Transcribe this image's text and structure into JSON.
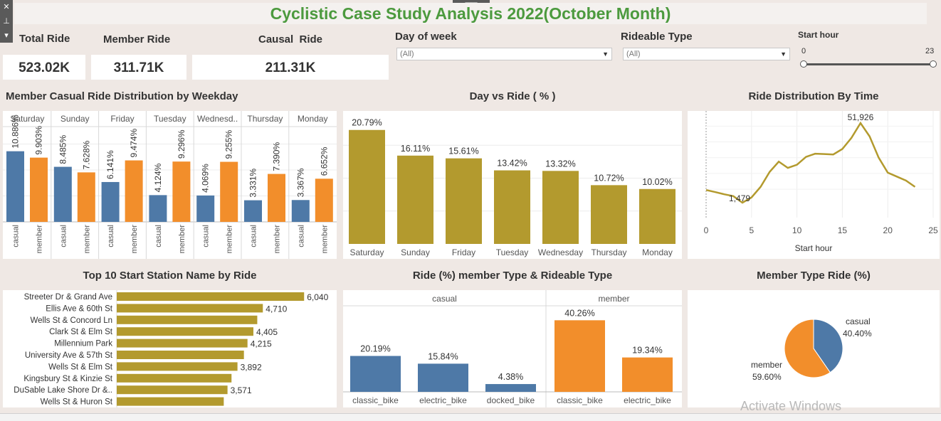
{
  "title": "Cyclistic Case Study Analysis 2022(October Month)",
  "kpis": [
    {
      "label": "Total Ride",
      "value": "523.02K"
    },
    {
      "label": "Member Ride",
      "value": "311.71K"
    },
    {
      "label": "Causal  Ride",
      "value": "211.31K"
    }
  ],
  "filters": {
    "day_of_week": {
      "label": "Day of week",
      "value": "(All)"
    },
    "rideable_type": {
      "label": "Rideable Type",
      "value": "(All)"
    },
    "start_hour": {
      "label": "Start hour",
      "min": "0",
      "max": "23"
    }
  },
  "colors": {
    "casual": "#4e79a7",
    "member": "#f28e2b",
    "olive": "#b39a2e",
    "title_green": "#4c9a3e"
  },
  "watermark": "Activate Windows",
  "chart_data": [
    {
      "type": "bar",
      "title": "Member Casual Ride Distribution by Weekday",
      "categories": [
        "Saturday",
        "Sunday",
        "Friday",
        "Tuesday",
        "Wednesd..",
        "Thursday",
        "Monday"
      ],
      "series": [
        {
          "name": "casual",
          "values": [
            10.886,
            8.485,
            6.141,
            4.124,
            4.069,
            3.331,
            3.367
          ],
          "labels": [
            "10.886%",
            "8.485%",
            "6.141%",
            "4.124%",
            "4.069%",
            "3.331%",
            "3.367%"
          ]
        },
        {
          "name": "member",
          "values": [
            9.903,
            7.628,
            9.474,
            9.296,
            9.255,
            7.39,
            6.652
          ],
          "labels": [
            "9.903%",
            "7.628%",
            "9.474%",
            "9.296%",
            "9.255%",
            "7.390%",
            "6.652%"
          ]
        }
      ],
      "ylim": [
        0,
        16
      ]
    },
    {
      "type": "bar",
      "title": "Day vs Ride ( % )",
      "categories": [
        "Saturday",
        "Sunday",
        "Friday",
        "Tuesday",
        "Wednesday",
        "Thursday",
        "Monday"
      ],
      "values": [
        20.79,
        16.11,
        15.61,
        13.42,
        13.32,
        10.72,
        10.02
      ],
      "labels": [
        "20.79%",
        "16.11%",
        "15.61%",
        "13.42%",
        "13.32%",
        "10.72%",
        "10.02%"
      ],
      "ylim": [
        0,
        24
      ]
    },
    {
      "type": "line",
      "title": "Ride Distribution By Time",
      "xlabel": "Start hour",
      "x": [
        0,
        1,
        2,
        3,
        4,
        5,
        6,
        7,
        8,
        9,
        10,
        11,
        12,
        13,
        14,
        15,
        16,
        17,
        18,
        19,
        20,
        21,
        22,
        23
      ],
      "y": [
        9500,
        8200,
        6800,
        5600,
        1479,
        4800,
        11500,
        21000,
        27500,
        23500,
        25500,
        30500,
        32500,
        32300,
        32000,
        35500,
        42500,
        51926,
        43500,
        30000,
        20500,
        18000,
        15500,
        11500
      ],
      "annotations": [
        "51,926",
        "1,479"
      ],
      "xticks": [
        "0",
        "5",
        "10",
        "15",
        "20",
        "25"
      ],
      "xlim": [
        0,
        25
      ],
      "ylim": [
        -8000,
        56000
      ]
    },
    {
      "type": "bar",
      "orientation": "horizontal",
      "title": "Top 10 Start Station Name by Ride",
      "categories": [
        "Streeter Dr & Grand Ave",
        "Ellis Ave & 60th St",
        "Wells St & Concord Ln",
        "Clark St & Elm St",
        "Millennium Park",
        "University Ave & 57th St",
        "Wells St & Elm St",
        "Kingsbury St & Kinzie St",
        "DuSable Lake Shore Dr &..",
        "Wells St & Huron St"
      ],
      "values": [
        6040,
        4710,
        4530,
        4405,
        4215,
        4100,
        3892,
        3700,
        3571,
        3450
      ],
      "labels": [
        "6,040",
        "4,710",
        "",
        "4,405",
        "4,215",
        "",
        "3,892",
        "",
        "3,571",
        ""
      ],
      "xlim": [
        0,
        6700
      ]
    },
    {
      "type": "bar",
      "title": "Ride (%) member Type & Rideable Type",
      "groups": [
        {
          "name": "casual",
          "categories": [
            "classic_bike",
            "electric_bike",
            "docked_bike"
          ],
          "values": [
            20.19,
            15.84,
            4.38
          ],
          "labels": [
            "20.19%",
            "15.84%",
            "4.38%"
          ]
        },
        {
          "name": "member",
          "categories": [
            "classic_bike",
            "electric_bike"
          ],
          "values": [
            40.26,
            19.34
          ],
          "labels": [
            "40.26%",
            "19.34%"
          ]
        }
      ],
      "ylim": [
        0,
        46
      ]
    },
    {
      "type": "pie",
      "title": "Member Type Ride (%)",
      "slices": [
        {
          "name": "casual",
          "value": 40.4,
          "label": "40.40%"
        },
        {
          "name": "member",
          "value": 59.6,
          "label": "59.60%"
        }
      ]
    }
  ]
}
